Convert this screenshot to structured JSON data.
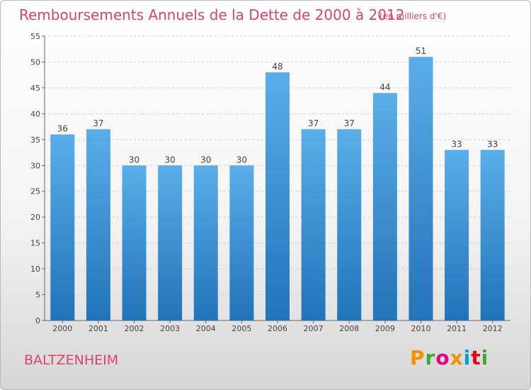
{
  "header": {
    "title": "Remboursements Annuels de la Dette de 2000 à 2012",
    "subtitle": "(en milliers d'€)"
  },
  "footer": {
    "town": "BALTZENHEIM",
    "logo_text": "Proxiti",
    "logo_colors": [
      "#f39200",
      "#3aa935",
      "#e6007e",
      "#f39200",
      "#009fe3",
      "#e30613",
      "#3aa935"
    ]
  },
  "chart_data": {
    "type": "bar",
    "categories": [
      "2000",
      "2001",
      "2002",
      "2003",
      "2004",
      "2005",
      "2006",
      "2007",
      "2008",
      "2009",
      "2010",
      "2011",
      "2012"
    ],
    "values": [
      36,
      37,
      30,
      30,
      30,
      30,
      48,
      37,
      37,
      44,
      51,
      33,
      33
    ],
    "ylim": [
      0,
      55
    ],
    "yticks": [
      0,
      5,
      10,
      15,
      20,
      25,
      30,
      35,
      40,
      45,
      50,
      55
    ],
    "grid": true,
    "bar_color_top": "#5aaee9",
    "bar_color_bottom": "#2273b8"
  }
}
